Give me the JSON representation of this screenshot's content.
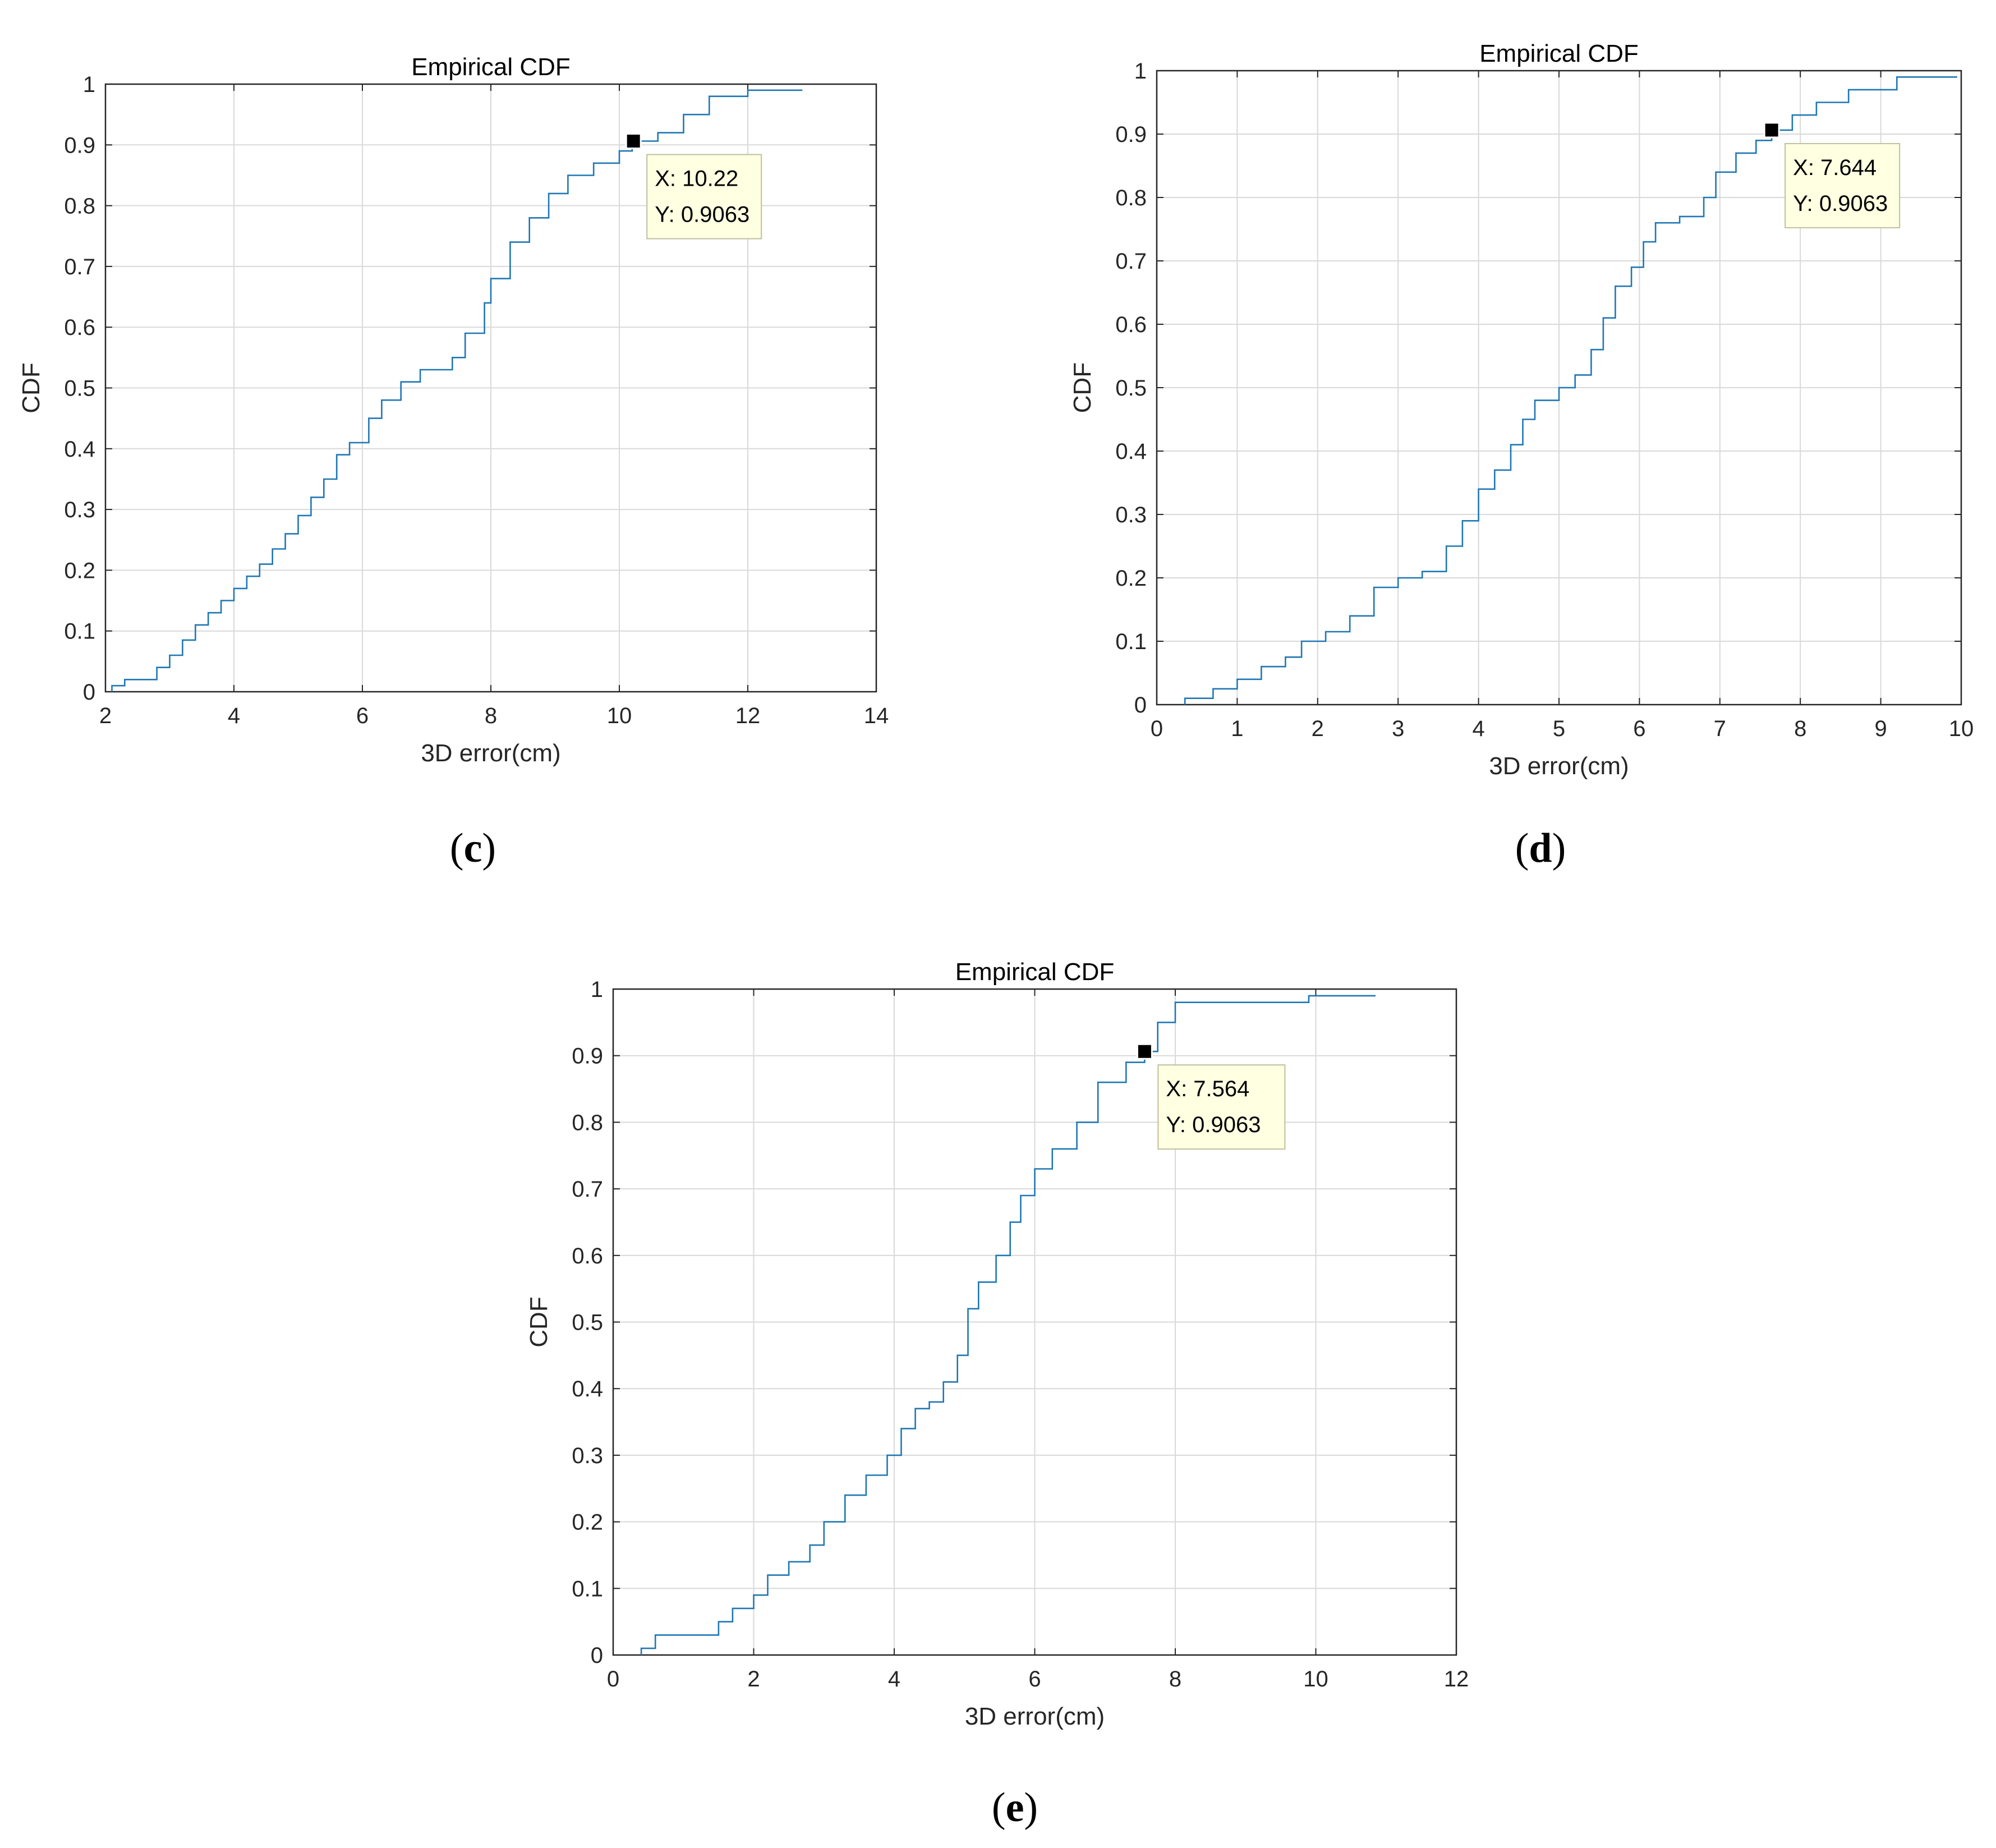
{
  "chart_data": [
    {
      "type": "line",
      "title": "Empirical CDF",
      "xlabel": "3D error(cm)",
      "ylabel": "CDF",
      "xlim": [
        2,
        14
      ],
      "ylim": [
        0,
        1
      ],
      "xticks": [
        "2",
        "4",
        "6",
        "8",
        "10",
        "12",
        "14"
      ],
      "yticks": [
        "0",
        "0.1",
        "0.2",
        "0.3",
        "0.4",
        "0.5",
        "0.6",
        "0.7",
        "0.8",
        "0.9",
        "1"
      ],
      "grid": true,
      "series": [
        {
          "name": "Empirical CDF",
          "x": [
            2.1,
            2.3,
            2.8,
            3.0,
            3.2,
            3.4,
            3.6,
            3.8,
            4.0,
            4.2,
            4.4,
            4.6,
            4.8,
            5.0,
            5.2,
            5.4,
            5.6,
            5.8,
            6.1,
            6.3,
            6.6,
            6.9,
            7.4,
            7.6,
            7.9,
            8.0,
            8.3,
            8.6,
            8.9,
            9.2,
            9.6,
            10.0,
            10.2,
            10.6,
            11.0,
            11.4,
            12.0,
            12.85
          ],
          "y": [
            0.01,
            0.02,
            0.04,
            0.06,
            0.085,
            0.11,
            0.13,
            0.15,
            0.17,
            0.19,
            0.21,
            0.235,
            0.26,
            0.29,
            0.32,
            0.35,
            0.39,
            0.41,
            0.45,
            0.48,
            0.51,
            0.53,
            0.55,
            0.59,
            0.64,
            0.68,
            0.74,
            0.78,
            0.82,
            0.85,
            0.87,
            0.89,
            0.9063,
            0.92,
            0.95,
            0.98,
            0.99,
            0.99
          ]
        }
      ],
      "datatip": {
        "x": 10.22,
        "y": 0.9063,
        "line1": "X: 10.22",
        "line2": "Y: 0.9063"
      },
      "caption": "c"
    },
    {
      "type": "line",
      "title": "Empirical CDF",
      "xlabel": "3D error(cm)",
      "ylabel": "CDF",
      "xlim": [
        0,
        10
      ],
      "ylim": [
        0,
        1
      ],
      "xticks": [
        "0",
        "1",
        "2",
        "3",
        "4",
        "5",
        "6",
        "7",
        "8",
        "9",
        "10"
      ],
      "yticks": [
        "0",
        "0.1",
        "0.2",
        "0.3",
        "0.4",
        "0.5",
        "0.6",
        "0.7",
        "0.8",
        "0.9",
        "1"
      ],
      "grid": true,
      "series": [
        {
          "name": "Empirical CDF",
          "x": [
            0.35,
            0.7,
            1.0,
            1.3,
            1.6,
            1.8,
            2.1,
            2.4,
            2.7,
            3.0,
            3.3,
            3.6,
            3.8,
            4.0,
            4.2,
            4.4,
            4.55,
            4.7,
            5.0,
            5.2,
            5.4,
            5.55,
            5.7,
            5.9,
            6.05,
            6.2,
            6.5,
            6.8,
            6.95,
            7.2,
            7.45,
            7.644,
            7.9,
            8.2,
            8.6,
            9.2,
            9.95
          ],
          "y": [
            0.01,
            0.025,
            0.04,
            0.06,
            0.075,
            0.1,
            0.115,
            0.14,
            0.185,
            0.2,
            0.21,
            0.25,
            0.29,
            0.34,
            0.37,
            0.41,
            0.45,
            0.48,
            0.5,
            0.52,
            0.56,
            0.61,
            0.66,
            0.69,
            0.73,
            0.76,
            0.77,
            0.8,
            0.84,
            0.87,
            0.89,
            0.9063,
            0.93,
            0.95,
            0.97,
            0.99,
            0.99
          ]
        }
      ],
      "datatip": {
        "x": 7.644,
        "y": 0.9063,
        "line1": "X: 7.644",
        "line2": "Y: 0.9063"
      },
      "caption": "d"
    },
    {
      "type": "line",
      "title": "Empirical CDF",
      "xlabel": "3D error(cm)",
      "ylabel": "CDF",
      "xlim": [
        0,
        12
      ],
      "ylim": [
        0,
        1
      ],
      "xticks": [
        "0",
        "2",
        "4",
        "6",
        "8",
        "10",
        "12"
      ],
      "yticks": [
        "0",
        "0.1",
        "0.2",
        "0.3",
        "0.4",
        "0.5",
        "0.6",
        "0.7",
        "0.8",
        "0.9",
        "1"
      ],
      "grid": true,
      "series": [
        {
          "name": "Empirical CDF",
          "x": [
            0.4,
            0.6,
            1.5,
            1.7,
            2.0,
            2.2,
            2.5,
            2.8,
            3.0,
            3.3,
            3.6,
            3.9,
            4.1,
            4.3,
            4.5,
            4.7,
            4.9,
            5.05,
            5.2,
            5.45,
            5.65,
            5.8,
            6.0,
            6.25,
            6.6,
            6.9,
            7.3,
            7.564,
            7.75,
            8.0,
            9.9,
            10.85
          ],
          "y": [
            0.01,
            0.03,
            0.05,
            0.07,
            0.09,
            0.12,
            0.14,
            0.165,
            0.2,
            0.24,
            0.27,
            0.3,
            0.34,
            0.37,
            0.38,
            0.41,
            0.45,
            0.52,
            0.56,
            0.6,
            0.65,
            0.69,
            0.73,
            0.76,
            0.8,
            0.86,
            0.89,
            0.9063,
            0.95,
            0.98,
            0.99,
            0.99
          ]
        }
      ],
      "datatip": {
        "x": 7.564,
        "y": 0.9063,
        "line1": "X: 7.564",
        "line2": "Y: 0.9063"
      },
      "caption": "e"
    }
  ],
  "colors": {
    "series": "#1f77b4",
    "grid": "#d9d9d9",
    "datatip_bg": "#ffffe1",
    "datatip_border": "#bfbfa0"
  },
  "captions": {
    "c": "c",
    "d": "d",
    "e": "e"
  }
}
